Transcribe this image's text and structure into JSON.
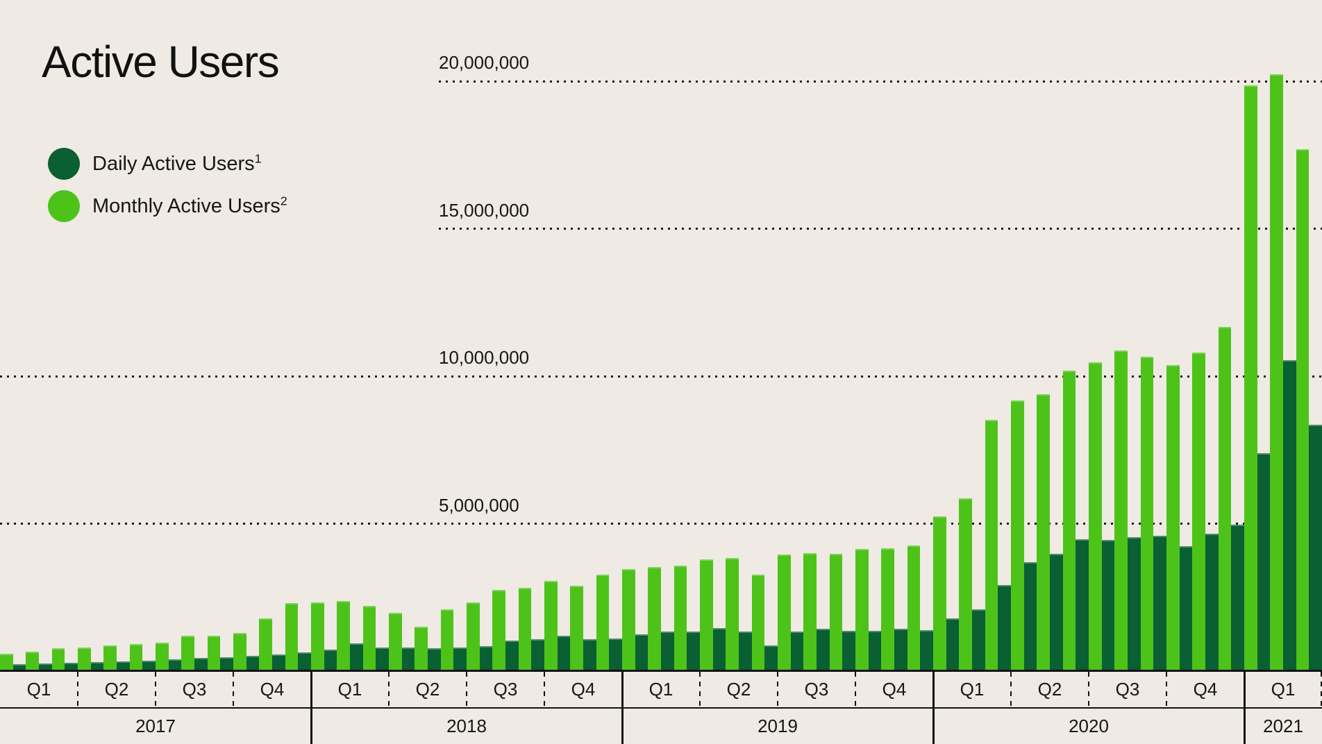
{
  "title": "Active Users",
  "background_color": "#EFEAE3",
  "text_color": "#161616",
  "legend": {
    "items": [
      {
        "label": "Daily Active Users",
        "footnote_marker": "1",
        "color": "#0A5F33"
      },
      {
        "label": "Monthly Active Users",
        "footnote_marker": "2",
        "color": "#4DC31A"
      }
    ]
  },
  "chart_data": {
    "type": "bar",
    "title": "Active Users",
    "unit": "users",
    "grid": "horizontal dotted lines",
    "legend_position": "top-left",
    "y_axis": {
      "tick_labels": [
        "20,000,000",
        "15,000,000",
        "10,000,000",
        "5,000,000"
      ],
      "tick_values_millions": [
        20,
        15,
        10,
        5
      ],
      "range_millions": [
        0,
        21.3
      ]
    },
    "x_axis": {
      "bar_granularity": "monthly",
      "years": [
        {
          "year": "2017",
          "quarters": [
            "Q1",
            "Q2",
            "Q3",
            "Q4"
          ]
        },
        {
          "year": "2018",
          "quarters": [
            "Q1",
            "Q2",
            "Q3",
            "Q4"
          ]
        },
        {
          "year": "2019",
          "quarters": [
            "Q1",
            "Q2",
            "Q3",
            "Q4"
          ]
        },
        {
          "year": "2020",
          "quarters": [
            "Q1",
            "Q2",
            "Q3",
            "Q4"
          ]
        },
        {
          "year": "2021",
          "quarters": [
            "Q1"
          ]
        }
      ]
    },
    "series": [
      {
        "name": "Daily Active Users",
        "footnote_marker": "1",
        "color": "#0A5F33",
        "monthly_values_millions": {
          "2017": [
            0.24,
            0.26,
            0.28,
            0.31,
            0.34,
            0.36,
            0.39,
            0.45,
            0.46,
            0.52,
            0.57,
            0.64
          ],
          "2018": [
            0.73,
            0.94,
            0.81,
            0.81,
            0.78,
            0.81,
            0.85,
            1.03,
            1.08,
            1.2,
            1.08,
            1.1
          ],
          "2019": [
            1.25,
            1.34,
            1.34,
            1.46,
            1.35,
            0.88,
            1.34,
            1.43,
            1.37,
            1.37,
            1.43,
            1.39
          ],
          "2020": [
            1.78,
            2.1,
            2.92,
            3.7,
            3.97,
            4.47,
            4.45,
            4.54,
            4.58,
            4.24,
            4.66,
            4.96
          ],
          "2021": [
            7.39,
            10.55,
            8.35
          ]
        }
      },
      {
        "name": "Monthly Active Users",
        "footnote_marker": "2",
        "color": "#4DC31A",
        "monthly_values_millions": {
          "2017": [
            0.59,
            0.67,
            0.78,
            0.81,
            0.88,
            0.92,
            0.96,
            1.2,
            1.21,
            1.29,
            1.79,
            2.3
          ],
          "2018": [
            2.33,
            2.38,
            2.22,
            1.97,
            1.5,
            2.1,
            2.32,
            2.75,
            2.82,
            3.06,
            2.89,
            3.27
          ],
          "2019": [
            3.46,
            3.53,
            3.58,
            3.79,
            3.84,
            3.26,
            3.95,
            3.99,
            3.97,
            4.15,
            4.17,
            4.27
          ],
          "2020": [
            5.24,
            5.87,
            8.52,
            9.18,
            9.39,
            10.19,
            10.48,
            10.86,
            10.67,
            10.37,
            10.81,
            11.66
          ],
          "2021": [
            19.87,
            20.23,
            17.7
          ]
        }
      }
    ]
  }
}
